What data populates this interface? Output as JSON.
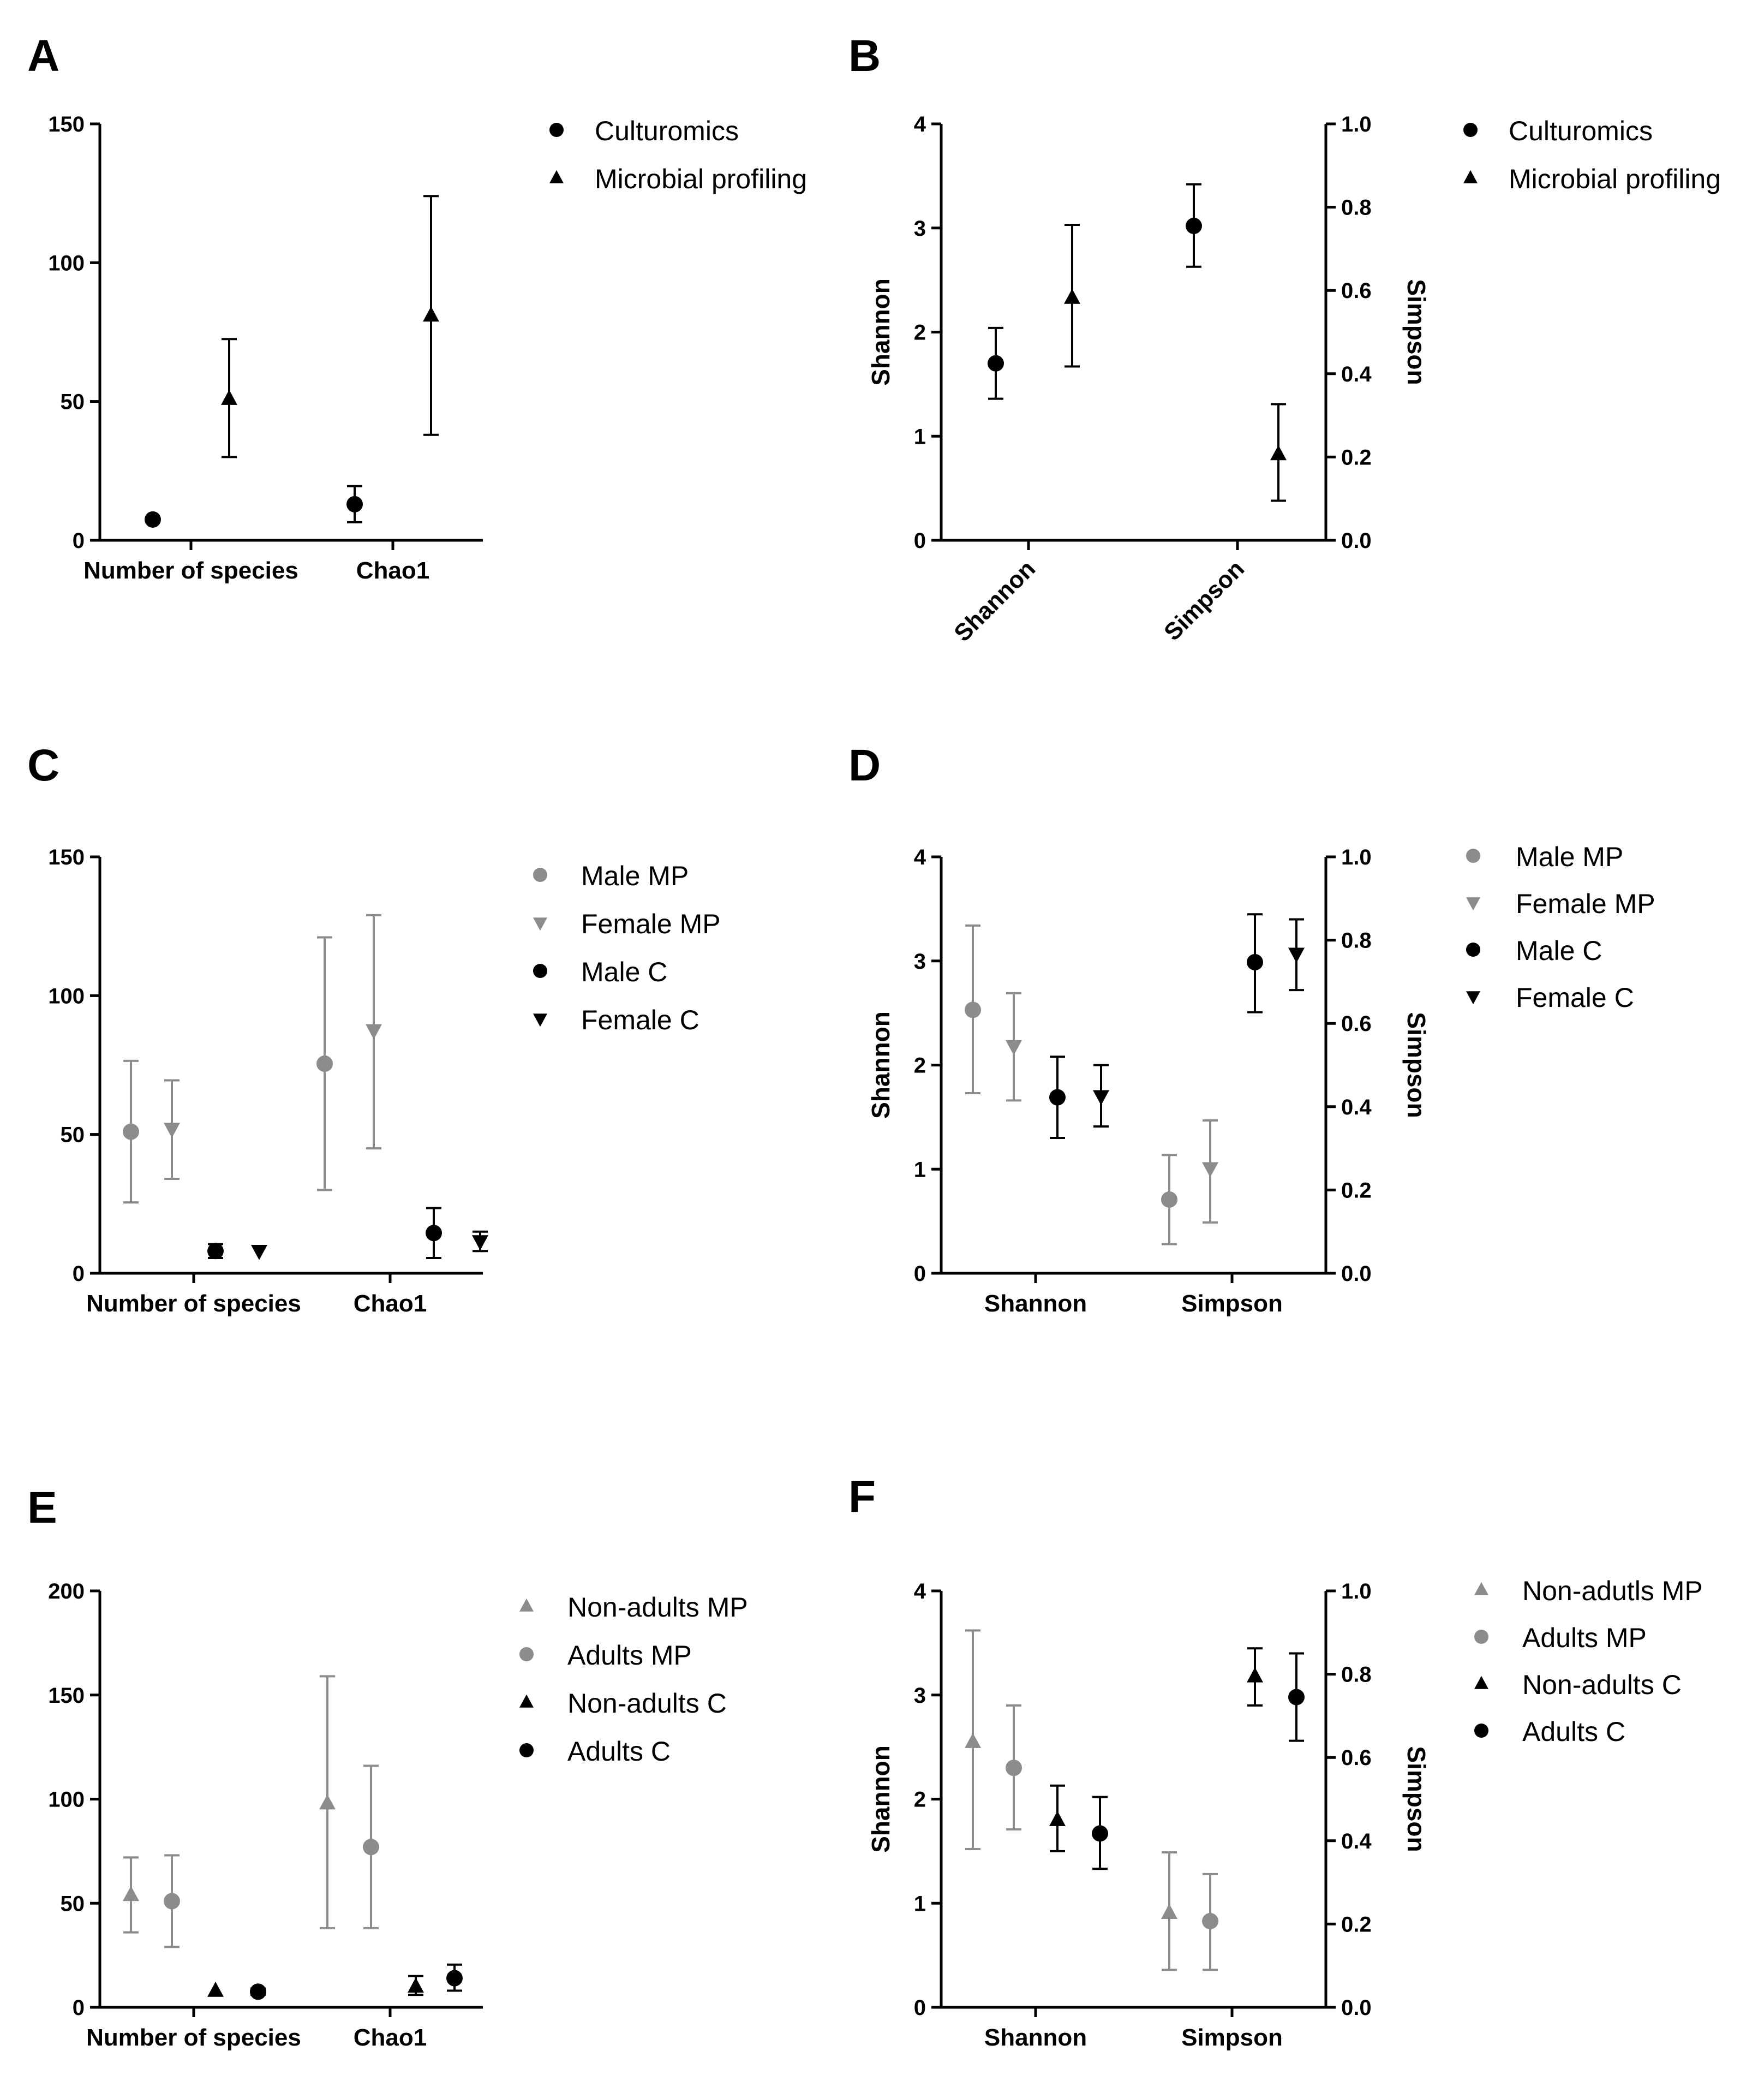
{
  "chart_data": [
    {
      "panel": "A",
      "type": "scatter",
      "errorbars": true,
      "axes": "single",
      "categories": [
        "Number of species",
        "Chao1"
      ],
      "y_ticks": [
        "0",
        "50",
        "100",
        "150"
      ],
      "ylim": [
        0,
        150
      ],
      "legend": {
        "placement": "right"
      },
      "series": [
        {
          "name": "Culturomics",
          "marker": "circle",
          "color": "#000000",
          "points": [
            {
              "cat": 0,
              "y": 7.5,
              "lo": 7.5,
              "hi": 7.5
            },
            {
              "cat": 1,
              "y": 13,
              "lo": 6.5,
              "hi": 19.5
            }
          ]
        },
        {
          "name": "Microbial profiling",
          "marker": "triangle",
          "color": "#000000",
          "points": [
            {
              "cat": 0,
              "y": 51,
              "lo": 30,
              "hi": 72.5
            },
            {
              "cat": 1,
              "y": 81,
              "lo": 38,
              "hi": 124
            }
          ]
        }
      ]
    },
    {
      "panel": "B",
      "type": "scatter",
      "errorbars": true,
      "axes": "dual",
      "categories": [
        "Shannon",
        "Simpson"
      ],
      "category_labels_rotated": true,
      "ylabel_left": "Shannon",
      "ylabel_right": "Simpson",
      "y_ticks_left": [
        "0",
        "1",
        "2",
        "3",
        "4"
      ],
      "ylim_left": [
        0,
        4
      ],
      "y_ticks_right": [
        "0.0",
        "0.2",
        "0.4",
        "0.6",
        "0.8",
        "1.0"
      ],
      "ylim_right": [
        0,
        1
      ],
      "legend": {
        "placement": "right"
      },
      "series": [
        {
          "name": "Culturomics",
          "marker": "circle",
          "color": "#000000",
          "points": [
            {
              "cat": 0,
              "axis": "left",
              "y": 1.7,
              "lo": 1.36,
              "hi": 2.04
            },
            {
              "cat": 1,
              "axis": "right",
              "y": 0.755,
              "lo": 0.657,
              "hi": 0.855
            }
          ]
        },
        {
          "name": "Microbial profiling",
          "marker": "triangle",
          "color": "#000000",
          "points": [
            {
              "cat": 0,
              "axis": "left",
              "y": 2.33,
              "lo": 1.67,
              "hi": 3.03
            },
            {
              "cat": 1,
              "axis": "right",
              "y": 0.207,
              "lo": 0.095,
              "hi": 0.327
            }
          ]
        }
      ]
    },
    {
      "panel": "C",
      "type": "scatter",
      "errorbars": true,
      "axes": "single",
      "categories": [
        "Number of species",
        "Chao1"
      ],
      "y_ticks": [
        "0",
        "50",
        "100",
        "150"
      ],
      "ylim": [
        0,
        150
      ],
      "legend": {
        "placement": "right"
      },
      "series": [
        {
          "name": "Male MP",
          "marker": "circle",
          "color": "#8c8c8c",
          "points": [
            {
              "cat": 0,
              "y": 51,
              "lo": 25.5,
              "hi": 76.5
            },
            {
              "cat": 1,
              "y": 75.5,
              "lo": 30,
              "hi": 121
            }
          ]
        },
        {
          "name": "Female MP",
          "marker": "triangle-down",
          "color": "#8c8c8c",
          "points": [
            {
              "cat": 0,
              "y": 52,
              "lo": 34,
              "hi": 69.5
            },
            {
              "cat": 1,
              "y": 87.5,
              "lo": 45,
              "hi": 129
            }
          ]
        },
        {
          "name": "Male C",
          "marker": "circle",
          "color": "#000000",
          "points": [
            {
              "cat": 0,
              "y": 8,
              "lo": 5.5,
              "hi": 10.5
            },
            {
              "cat": 1,
              "y": 14.5,
              "lo": 5.5,
              "hi": 23.5
            }
          ]
        },
        {
          "name": "Female C",
          "marker": "triangle-down",
          "color": "#000000",
          "points": [
            {
              "cat": 0,
              "y": 8,
              "lo": 8,
              "hi": 8
            },
            {
              "cat": 1,
              "y": 11.5,
              "lo": 8,
              "hi": 15
            }
          ]
        }
      ]
    },
    {
      "panel": "D",
      "type": "scatter",
      "errorbars": true,
      "axes": "dual",
      "categories": [
        "Shannon",
        "Simpson"
      ],
      "ylabel_left": "Shannon",
      "ylabel_right": "Simpson",
      "y_ticks_left": [
        "0",
        "1",
        "2",
        "3",
        "4"
      ],
      "ylim_left": [
        0,
        4
      ],
      "y_ticks_right": [
        "0.0",
        "0.2",
        "0.4",
        "0.6",
        "0.8",
        "1.0"
      ],
      "ylim_right": [
        0,
        1
      ],
      "legend": {
        "placement": "right"
      },
      "series": [
        {
          "name": "Male MP",
          "marker": "circle",
          "color": "#8c8c8c",
          "points": [
            {
              "cat": 0,
              "axis": "left",
              "y": 2.53,
              "lo": 1.73,
              "hi": 3.34
            },
            {
              "cat": 1,
              "axis": "right",
              "y": 0.177,
              "lo": 0.07,
              "hi": 0.284
            }
          ]
        },
        {
          "name": "Female MP",
          "marker": "triangle-down",
          "color": "#8c8c8c",
          "points": [
            {
              "cat": 0,
              "axis": "left",
              "y": 2.18,
              "lo": 1.66,
              "hi": 2.69
            },
            {
              "cat": 1,
              "axis": "right",
              "y": 0.252,
              "lo": 0.122,
              "hi": 0.367
            }
          ]
        },
        {
          "name": "Male C",
          "marker": "circle",
          "color": "#000000",
          "points": [
            {
              "cat": 0,
              "axis": "left",
              "y": 1.69,
              "lo": 1.3,
              "hi": 2.08
            },
            {
              "cat": 1,
              "axis": "right",
              "y": 0.747,
              "lo": 0.627,
              "hi": 0.862
            }
          ]
        },
        {
          "name": "Female C",
          "marker": "triangle-down",
          "color": "#000000",
          "points": [
            {
              "cat": 0,
              "axis": "left",
              "y": 1.7,
              "lo": 1.41,
              "hi": 2.0
            },
            {
              "cat": 1,
              "axis": "right",
              "y": 0.767,
              "lo": 0.68,
              "hi": 0.85
            }
          ]
        }
      ]
    },
    {
      "panel": "E",
      "type": "scatter",
      "errorbars": true,
      "axes": "single",
      "categories": [
        "Number of species",
        "Chao1"
      ],
      "y_ticks": [
        "0",
        "50",
        "100",
        "150",
        "200"
      ],
      "ylim": [
        0,
        200
      ],
      "legend": {
        "placement": "right"
      },
      "series": [
        {
          "name": "Non-adults MP",
          "marker": "triangle",
          "color": "#8c8c8c",
          "points": [
            {
              "cat": 0,
              "y": 54,
              "lo": 36,
              "hi": 72
            },
            {
              "cat": 1,
              "y": 98,
              "lo": 38,
              "hi": 159
            }
          ]
        },
        {
          "name": "Adults MP",
          "marker": "circle",
          "color": "#8c8c8c",
          "points": [
            {
              "cat": 0,
              "y": 51,
              "lo": 29,
              "hi": 73
            },
            {
              "cat": 1,
              "y": 77,
              "lo": 38,
              "hi": 116
            }
          ]
        },
        {
          "name": "Non-adults C",
          "marker": "triangle",
          "color": "#000000",
          "points": [
            {
              "cat": 0,
              "y": 8,
              "lo": 8,
              "hi": 8
            },
            {
              "cat": 1,
              "y": 10,
              "lo": 6,
              "hi": 15
            }
          ]
        },
        {
          "name": "Adults C",
          "marker": "circle",
          "color": "#000000",
          "points": [
            {
              "cat": 0,
              "y": 7.5,
              "lo": 6,
              "hi": 9
            },
            {
              "cat": 1,
              "y": 14,
              "lo": 8,
              "hi": 20.5
            }
          ]
        }
      ]
    },
    {
      "panel": "F",
      "type": "scatter",
      "errorbars": true,
      "axes": "dual",
      "categories": [
        "Shannon",
        "Simpson"
      ],
      "ylabel_left": "Shannon",
      "ylabel_right": "Simpson",
      "y_ticks_left": [
        "0",
        "1",
        "2",
        "3",
        "4"
      ],
      "ylim_left": [
        0,
        4
      ],
      "y_ticks_right": [
        "0.0",
        "0.2",
        "0.4",
        "0.6",
        "0.8",
        "1.0"
      ],
      "ylim_right": [
        0,
        1
      ],
      "legend": {
        "placement": "right"
      },
      "series": [
        {
          "name": "Non-adutls MP",
          "marker": "triangle",
          "color": "#8c8c8c",
          "points": [
            {
              "cat": 0,
              "axis": "left",
              "y": 2.55,
              "lo": 1.52,
              "hi": 3.62
            },
            {
              "cat": 1,
              "axis": "right",
              "y": 0.227,
              "lo": 0.09,
              "hi": 0.372
            }
          ]
        },
        {
          "name": "Adults MP",
          "marker": "circle",
          "color": "#8c8c8c",
          "points": [
            {
              "cat": 0,
              "axis": "left",
              "y": 2.3,
              "lo": 1.71,
              "hi": 2.9
            },
            {
              "cat": 1,
              "axis": "right",
              "y": 0.207,
              "lo": 0.09,
              "hi": 0.32
            }
          ]
        },
        {
          "name": "Non-adults C",
          "marker": "triangle",
          "color": "#000000",
          "points": [
            {
              "cat": 0,
              "axis": "left",
              "y": 1.8,
              "lo": 1.5,
              "hi": 2.13
            },
            {
              "cat": 1,
              "axis": "right",
              "y": 0.795,
              "lo": 0.725,
              "hi": 0.862
            }
          ]
        },
        {
          "name": "Adults C",
          "marker": "circle",
          "color": "#000000",
          "points": [
            {
              "cat": 0,
              "axis": "left",
              "y": 1.67,
              "lo": 1.33,
              "hi": 2.02
            },
            {
              "cat": 1,
              "axis": "right",
              "y": 0.745,
              "lo": 0.64,
              "hi": 0.85
            }
          ]
        }
      ]
    }
  ]
}
